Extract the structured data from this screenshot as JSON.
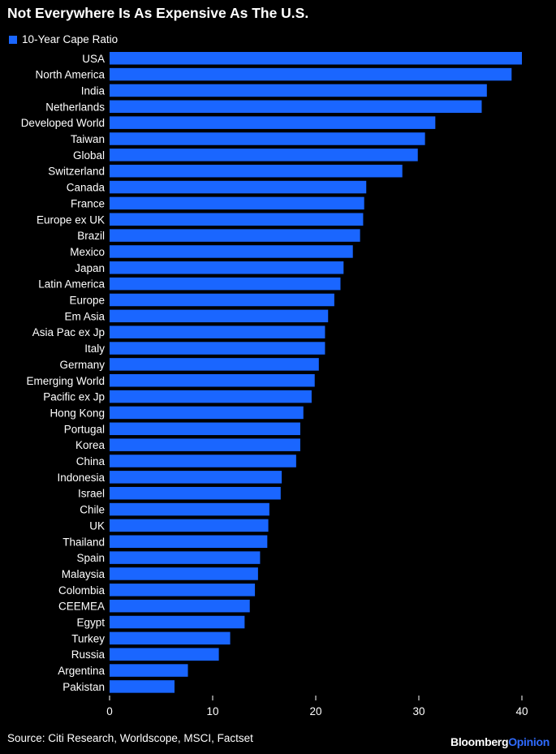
{
  "chart_data": {
    "type": "bar",
    "orientation": "horizontal",
    "title": "Not Everywhere Is As Expensive As The U.S.",
    "series": [
      {
        "name": "10-Year Cape Ratio",
        "color": "#1a66ff",
        "values": [
          40.0,
          39.0,
          36.6,
          36.1,
          31.6,
          30.6,
          29.9,
          28.4,
          24.9,
          24.7,
          24.6,
          24.3,
          23.6,
          22.7,
          22.4,
          21.8,
          21.2,
          20.9,
          20.9,
          20.3,
          19.9,
          19.6,
          18.8,
          18.5,
          18.5,
          18.1,
          16.7,
          16.6,
          15.5,
          15.4,
          15.3,
          14.6,
          14.4,
          14.1,
          13.6,
          13.1,
          11.7,
          10.6,
          7.6,
          6.3
        ]
      }
    ],
    "categories": [
      "USA",
      "North America",
      "India",
      "Netherlands",
      "Developed World",
      "Taiwan",
      "Global",
      "Switzerland",
      "Canada",
      "France",
      "Europe ex UK",
      "Brazil",
      "Mexico",
      "Japan",
      "Latin America",
      "Europe",
      "Em Asia",
      "Asia Pac ex Jp",
      "Italy",
      "Germany",
      "Emerging World",
      "Pacific ex Jp",
      "Hong Kong",
      "Portugal",
      "Korea",
      "China",
      "Indonesia",
      "Israel",
      "Chile",
      "UK",
      "Thailand",
      "Spain",
      "Malaysia",
      "Colombia",
      "CEEMEA",
      "Egypt",
      "Turkey",
      "Russia",
      "Argentina",
      "Pakistan"
    ],
    "xlim": [
      0,
      40
    ],
    "xticks": [
      "0",
      "10",
      "20",
      "30",
      "40"
    ],
    "grid": false,
    "legend_position": "top-left"
  },
  "footer": {
    "source": "Source: Citi Research, Worldscope, MSCI, Factset",
    "brand_primary": "Bloomberg",
    "brand_secondary": "Opinion"
  }
}
